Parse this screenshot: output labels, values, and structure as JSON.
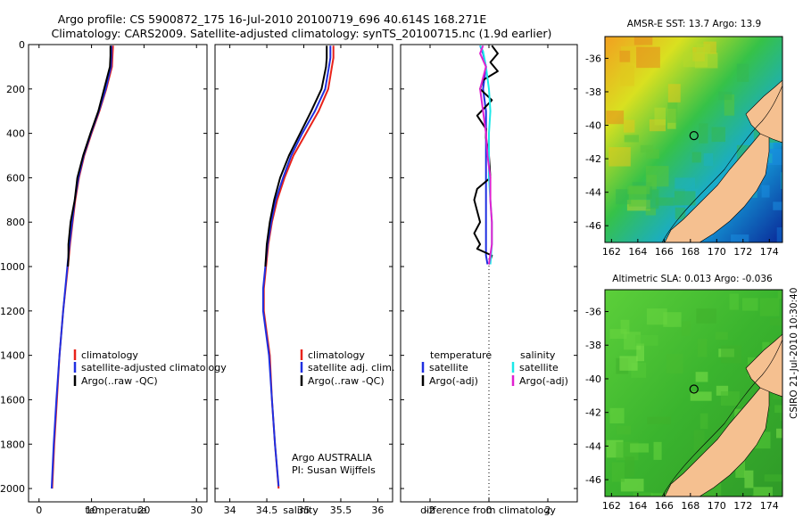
{
  "header": {
    "title_line1": "Argo profile: CS 5900872_175 16-Jul-2010 20100719_696 40.614S 168.271E",
    "title_line2": "Climatology: CARS2009. Satellite-adjusted climatology: synTS_20100715.nc (1.9d earlier)"
  },
  "footer": {
    "credit_line1": "Argo AUSTRALIA",
    "credit_line2": "PI: Susan Wijffels",
    "side_stamp": "CSIRO 21-Jul-2010 10:30:40"
  },
  "colors": {
    "red": "#e8221a",
    "blue": "#1f2fe0",
    "black": "#000000",
    "cyan": "#1ce8e8",
    "magenta": "#e020d0"
  },
  "chart_data": [
    {
      "type": "line",
      "id": "temperature",
      "xlabel": "temperature",
      "xlim": [
        -2,
        32
      ],
      "ylim": [
        2060,
        0
      ],
      "xticks": [
        0,
        10,
        20,
        30
      ],
      "yticks": [
        0,
        200,
        400,
        600,
        800,
        1000,
        1200,
        1400,
        1600,
        1800,
        2000
      ],
      "legend": [
        "climatology",
        "satellite-adjusted climatology",
        "Argo(..raw -QC)"
      ],
      "series": [
        {
          "name": "climatology",
          "color": "red",
          "points": [
            [
              14.1,
              5
            ],
            [
              14.0,
              50
            ],
            [
              13.9,
              100
            ],
            [
              12.8,
              200
            ],
            [
              11.5,
              300
            ],
            [
              10.0,
              400
            ],
            [
              8.6,
              500
            ],
            [
              7.6,
              600
            ],
            [
              6.9,
              700
            ],
            [
              6.4,
              800
            ],
            [
              5.9,
              900
            ],
            [
              5.5,
              1000
            ],
            [
              4.6,
              1200
            ],
            [
              3.9,
              1400
            ],
            [
              3.4,
              1600
            ],
            [
              2.9,
              1800
            ],
            [
              2.5,
              2000
            ]
          ]
        },
        {
          "name": "satellite-adjusted climatology",
          "color": "blue",
          "points": [
            [
              13.8,
              5
            ],
            [
              13.8,
              50
            ],
            [
              13.7,
              100
            ],
            [
              12.7,
              200
            ],
            [
              11.4,
              300
            ],
            [
              9.9,
              400
            ],
            [
              8.5,
              500
            ],
            [
              7.5,
              600
            ],
            [
              6.8,
              700
            ],
            [
              6.3,
              800
            ],
            [
              5.8,
              900
            ],
            [
              5.4,
              1000
            ],
            [
              4.6,
              1200
            ],
            [
              3.9,
              1400
            ],
            [
              3.3,
              1600
            ],
            [
              2.8,
              1800
            ],
            [
              2.4,
              2000
            ]
          ]
        },
        {
          "name": "Argo(..raw -QC)",
          "color": "black",
          "points": [
            [
              13.6,
              5
            ],
            [
              13.6,
              50
            ],
            [
              13.5,
              100
            ],
            [
              12.4,
              200
            ],
            [
              11.3,
              300
            ],
            [
              9.8,
              400
            ],
            [
              8.4,
              500
            ],
            [
              7.3,
              600
            ],
            [
              6.8,
              700
            ],
            [
              6.0,
              800
            ],
            [
              5.6,
              900
            ],
            [
              5.6,
              960
            ],
            [
              5.5,
              1000
            ]
          ]
        }
      ]
    },
    {
      "type": "line",
      "id": "salinity",
      "xlabel": "salinity",
      "xlim": [
        33.8,
        36.2
      ],
      "ylim": [
        2060,
        0
      ],
      "xticks": [
        34,
        34.5,
        35,
        35.5,
        36
      ],
      "legend": [
        "climatology",
        "satellite adj. clim.",
        "Argo(..raw -QC)"
      ],
      "series": [
        {
          "name": "climatology",
          "color": "red",
          "points": [
            [
              35.4,
              5
            ],
            [
              35.4,
              60
            ],
            [
              35.38,
              100
            ],
            [
              35.33,
              200
            ],
            [
              35.2,
              300
            ],
            [
              35.03,
              400
            ],
            [
              34.86,
              500
            ],
            [
              34.74,
              600
            ],
            [
              34.64,
              700
            ],
            [
              34.57,
              800
            ],
            [
              34.52,
              900
            ],
            [
              34.49,
              1000
            ],
            [
              34.46,
              1100
            ],
            [
              34.46,
              1200
            ],
            [
              34.5,
              1300
            ],
            [
              34.54,
              1400
            ],
            [
              34.57,
              1600
            ],
            [
              34.61,
              1800
            ],
            [
              34.66,
              2000
            ]
          ]
        },
        {
          "name": "satellite adj. clim.",
          "color": "blue",
          "points": [
            [
              35.36,
              5
            ],
            [
              35.36,
              60
            ],
            [
              35.34,
              100
            ],
            [
              35.29,
              200
            ],
            [
              35.15,
              300
            ],
            [
              34.98,
              400
            ],
            [
              34.83,
              500
            ],
            [
              34.72,
              600
            ],
            [
              34.62,
              700
            ],
            [
              34.56,
              800
            ],
            [
              34.51,
              900
            ],
            [
              34.48,
              1000
            ],
            [
              34.45,
              1100
            ],
            [
              34.45,
              1200
            ],
            [
              34.49,
              1300
            ],
            [
              34.53,
              1400
            ],
            [
              34.57,
              1600
            ],
            [
              34.61,
              1800
            ],
            [
              34.66,
              1990
            ]
          ]
        },
        {
          "name": "Argo(..raw -QC)",
          "color": "black",
          "points": [
            [
              35.31,
              5
            ],
            [
              35.31,
              60
            ],
            [
              35.3,
              100
            ],
            [
              35.24,
              200
            ],
            [
              35.1,
              300
            ],
            [
              34.95,
              400
            ],
            [
              34.8,
              500
            ],
            [
              34.68,
              600
            ],
            [
              34.6,
              700
            ],
            [
              34.54,
              800
            ],
            [
              34.5,
              900
            ],
            [
              34.48,
              1000
            ]
          ]
        }
      ]
    },
    {
      "type": "line",
      "id": "difference",
      "xlabel": "difference from climatology",
      "xlim": [
        -3,
        3
      ],
      "ylim": [
        2060,
        0
      ],
      "xticks": [
        -2,
        0,
        2
      ],
      "legend_left_title": "temperature",
      "legend_right_title": "salinity",
      "legend_left": [
        "satellite",
        "Argo(-adj)"
      ],
      "legend_right": [
        "satellite",
        "Argo(-adj)"
      ],
      "series": [
        {
          "name": "temperature satellite",
          "color": "blue",
          "points": [
            [
              -0.3,
              5
            ],
            [
              -0.2,
              40
            ],
            [
              -0.1,
              100
            ],
            [
              -0.2,
              200
            ],
            [
              -0.1,
              300
            ],
            [
              -0.1,
              400
            ],
            [
              -0.1,
              600
            ],
            [
              -0.1,
              800
            ],
            [
              -0.1,
              950
            ],
            [
              -0.05,
              990
            ]
          ]
        },
        {
          "name": "temperature Argo(-adj)",
          "color": "black",
          "points": [
            [
              0.1,
              5
            ],
            [
              0.3,
              40
            ],
            [
              0.05,
              80
            ],
            [
              0.3,
              120
            ],
            [
              -0.2,
              160
            ],
            [
              -0.3,
              200
            ],
            [
              0.1,
              250
            ],
            [
              -0.4,
              320
            ],
            [
              -0.1,
              380
            ],
            [
              -0.1,
              420
            ],
            [
              0.0,
              500
            ],
            [
              0.05,
              600
            ],
            [
              -0.4,
              650
            ],
            [
              -0.5,
              700
            ],
            [
              -0.3,
              800
            ],
            [
              -0.5,
              850
            ],
            [
              -0.3,
              900
            ],
            [
              -0.4,
              920
            ],
            [
              0.1,
              950
            ],
            [
              0.0,
              990
            ]
          ]
        },
        {
          "name": "salinity satellite",
          "color": "cyan",
          "points": [
            [
              -0.3,
              5
            ],
            [
              -0.2,
              30
            ],
            [
              -0.1,
              100
            ],
            [
              0.0,
              200
            ],
            [
              0.05,
              300
            ],
            [
              0.0,
              400
            ],
            [
              0.0,
              500
            ],
            [
              0.0,
              600
            ],
            [
              0.05,
              700
            ],
            [
              0.1,
              800
            ],
            [
              0.1,
              900
            ],
            [
              0.05,
              990
            ]
          ]
        },
        {
          "name": "salinity Argo(-adj)",
          "color": "magenta",
          "points": [
            [
              -0.2,
              5
            ],
            [
              -0.3,
              40
            ],
            [
              -0.1,
              100
            ],
            [
              -0.3,
              200
            ],
            [
              -0.2,
              300
            ],
            [
              -0.1,
              400
            ],
            [
              -0.05,
              500
            ],
            [
              0.05,
              600
            ],
            [
              0.05,
              700
            ],
            [
              0.1,
              800
            ],
            [
              0.1,
              900
            ],
            [
              0.0,
              990
            ]
          ]
        }
      ]
    },
    {
      "type": "heatmap",
      "id": "sst_map",
      "title": "AMSR-E SST: 13.7 Argo: 13.9",
      "xlim": [
        161.5,
        175
      ],
      "ylim": [
        -47,
        -34.7
      ],
      "xticks": [
        162,
        164,
        166,
        168,
        170,
        172,
        174
      ],
      "yticks": [
        -36,
        -38,
        -40,
        -42,
        -44,
        -46
      ],
      "marker": {
        "lon": 168.271,
        "lat": -40.614
      }
    },
    {
      "type": "heatmap",
      "id": "sla_map",
      "title": "Altimetric SLA: 0.013 Argo: -0.036",
      "xlim": [
        161.5,
        175
      ],
      "ylim": [
        -47,
        -34.7
      ],
      "xticks": [
        162,
        164,
        166,
        168,
        170,
        172,
        174
      ],
      "yticks": [
        -36,
        -38,
        -40,
        -42,
        -44,
        -46
      ],
      "marker": {
        "lon": 168.271,
        "lat": -40.614
      }
    }
  ]
}
